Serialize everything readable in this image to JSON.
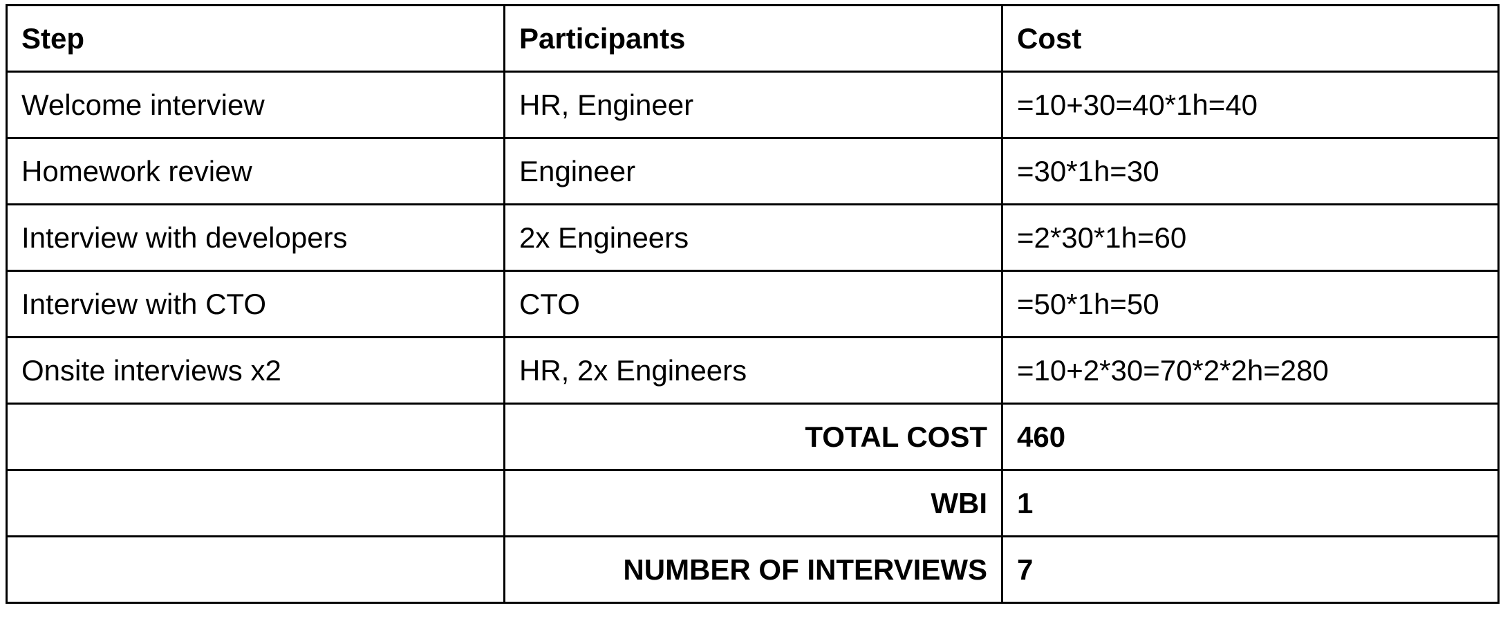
{
  "table": {
    "headers": [
      "Step",
      "Participants",
      "Cost"
    ],
    "rows": [
      {
        "step": "Welcome interview",
        "participants": "HR, Engineer",
        "cost": "=10+30=40*1h=40"
      },
      {
        "step": "Homework review",
        "participants": "Engineer",
        "cost": "=30*1h=30"
      },
      {
        "step": "Interview with developers",
        "participants": "2x Engineers",
        "cost": "=2*30*1h=60"
      },
      {
        "step": "Interview with CTO",
        "participants": "CTO",
        "cost": "=50*1h=50"
      },
      {
        "step": "Onsite interviews x2",
        "participants": "HR, 2x Engineers",
        "cost": "=10+2*30=70*2*2h=280"
      }
    ],
    "summary": [
      {
        "label": "TOTAL COST",
        "value": "460"
      },
      {
        "label": "WBI",
        "value": "1"
      },
      {
        "label": "NUMBER OF INTERVIEWS",
        "value": "7"
      }
    ]
  }
}
